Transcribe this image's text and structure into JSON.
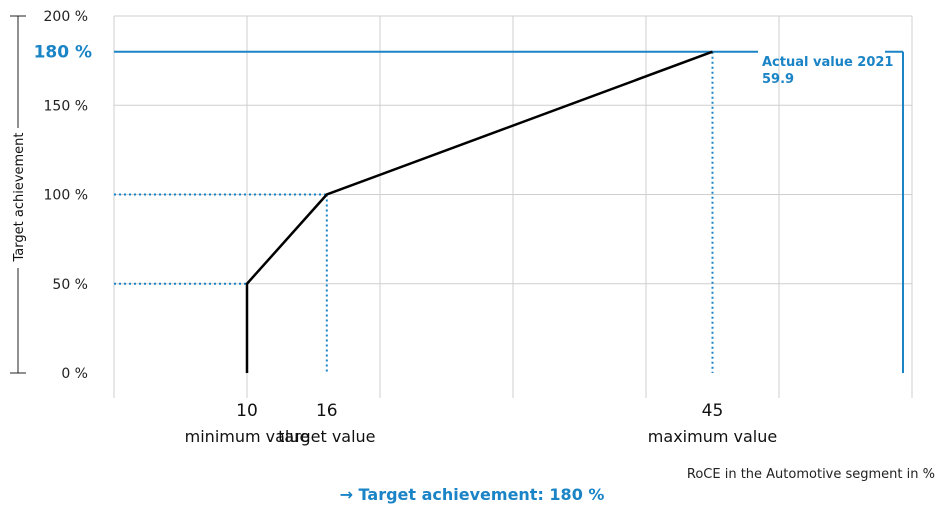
{
  "chart_data": {
    "type": "line",
    "xlabel": "RoCE in the Automotive segment in %",
    "ylabel": "Target achievement",
    "y_ticks": [
      "0 %",
      "50 %",
      "100 %",
      "150 %",
      "200 %"
    ],
    "y_tick_values": [
      0,
      50,
      100,
      150,
      200
    ],
    "ylim": [
      0,
      200
    ],
    "highlight_tick": {
      "value": 180,
      "label": "180 %"
    },
    "x_points": [
      {
        "value": 10,
        "label": "10",
        "caption": "minimum value"
      },
      {
        "value": 16,
        "label": "16",
        "caption": "target value"
      },
      {
        "value": 45,
        "label": "45",
        "caption": "maximum value"
      }
    ],
    "series": [
      {
        "x": [
          10,
          10,
          16,
          45
        ],
        "y": [
          0,
          50,
          100,
          180
        ]
      }
    ],
    "actual": {
      "value": 59.9,
      "achievement": 180,
      "label": "Actual value 2021",
      "value_label": "59.9"
    },
    "result_text": "→ Target achievement: 180 %",
    "grid": true,
    "colors": {
      "line": "#000000",
      "accent": "#1a84c6",
      "grid": "#cfcfcf",
      "axis": "#222222"
    }
  }
}
